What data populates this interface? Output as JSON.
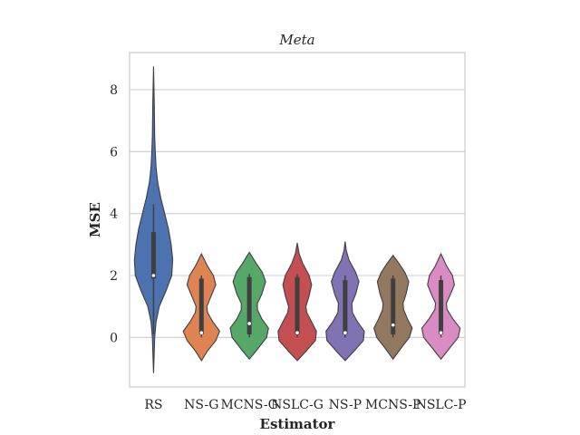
{
  "chart_data": {
    "type": "violin",
    "title": "Meta",
    "xlabel": "Estimator",
    "ylabel": "MSE",
    "categories": [
      "RS",
      "NS-G",
      "MCNS-G",
      "NSLC-G",
      "NS-P",
      "MCNS-P",
      "NSLC-P"
    ],
    "ylim": [
      -1.6,
      9.2
    ],
    "yticks": [
      0,
      2,
      4,
      6,
      8
    ],
    "grid": "horizontal",
    "series": [
      {
        "category": "RS",
        "color": "#4C72B0",
        "min": -1.15,
        "max": 8.75,
        "q1": 1.9,
        "median": 2.0,
        "q3": 3.4,
        "whisker_low": 0.1,
        "whisker_high": 4.3,
        "profile": [
          [
            -1.15,
            0.0
          ],
          [
            -0.6,
            0.03
          ],
          [
            0.0,
            0.06
          ],
          [
            0.5,
            0.13
          ],
          [
            1.0,
            0.3
          ],
          [
            1.5,
            0.65
          ],
          [
            2.0,
            0.95
          ],
          [
            2.5,
            1.0
          ],
          [
            3.0,
            0.92
          ],
          [
            3.5,
            0.78
          ],
          [
            4.0,
            0.58
          ],
          [
            4.5,
            0.38
          ],
          [
            5.0,
            0.22
          ],
          [
            5.5,
            0.13
          ],
          [
            6.0,
            0.09
          ],
          [
            6.5,
            0.06
          ],
          [
            7.5,
            0.04
          ],
          [
            8.75,
            0.0
          ]
        ]
      },
      {
        "category": "NS-G",
        "color": "#DD8452",
        "min": -0.75,
        "max": 2.7,
        "q1": 0.1,
        "median": 0.15,
        "q3": 1.9,
        "whisker_low": 0.0,
        "whisker_high": 2.0,
        "profile": [
          [
            -0.75,
            0.0
          ],
          [
            -0.45,
            0.3
          ],
          [
            -0.1,
            0.75
          ],
          [
            0.2,
            0.95
          ],
          [
            0.5,
            0.6
          ],
          [
            0.8,
            0.32
          ],
          [
            1.0,
            0.28
          ],
          [
            1.3,
            0.48
          ],
          [
            1.7,
            0.75
          ],
          [
            2.0,
            0.62
          ],
          [
            2.3,
            0.32
          ],
          [
            2.7,
            0.0
          ]
        ]
      },
      {
        "category": "MCNS-G",
        "color": "#55A868",
        "min": -0.7,
        "max": 2.75,
        "q1": 0.1,
        "median": 0.45,
        "q3": 1.95,
        "whisker_low": 0.0,
        "whisker_high": 2.05,
        "profile": [
          [
            -0.7,
            0.0
          ],
          [
            -0.4,
            0.4
          ],
          [
            0.0,
            0.9
          ],
          [
            0.3,
            1.0
          ],
          [
            0.6,
            0.65
          ],
          [
            0.9,
            0.42
          ],
          [
            1.1,
            0.42
          ],
          [
            1.4,
            0.65
          ],
          [
            1.8,
            0.85
          ],
          [
            2.1,
            0.68
          ],
          [
            2.4,
            0.35
          ],
          [
            2.75,
            0.0
          ]
        ]
      },
      {
        "category": "NSLC-G",
        "color": "#C44E52",
        "min": -0.75,
        "max": 3.05,
        "q1": 0.1,
        "median": 0.15,
        "q3": 1.95,
        "whisker_low": 0.0,
        "whisker_high": 2.05,
        "profile": [
          [
            -0.75,
            0.0
          ],
          [
            -0.45,
            0.45
          ],
          [
            -0.1,
            0.95
          ],
          [
            0.2,
            1.0
          ],
          [
            0.5,
            0.75
          ],
          [
            0.8,
            0.5
          ],
          [
            1.0,
            0.45
          ],
          [
            1.3,
            0.6
          ],
          [
            1.7,
            0.75
          ],
          [
            2.0,
            0.62
          ],
          [
            2.4,
            0.28
          ],
          [
            2.7,
            0.1
          ],
          [
            3.05,
            0.0
          ]
        ]
      },
      {
        "category": "NS-P",
        "color": "#8172B3",
        "min": -0.75,
        "max": 3.1,
        "q1": 0.1,
        "median": 0.15,
        "q3": 1.85,
        "whisker_low": 0.0,
        "whisker_high": 2.0,
        "profile": [
          [
            -0.75,
            0.0
          ],
          [
            -0.45,
            0.45
          ],
          [
            -0.1,
            0.95
          ],
          [
            0.2,
            1.0
          ],
          [
            0.5,
            0.65
          ],
          [
            0.8,
            0.38
          ],
          [
            1.1,
            0.35
          ],
          [
            1.4,
            0.55
          ],
          [
            1.8,
            0.72
          ],
          [
            2.1,
            0.55
          ],
          [
            2.5,
            0.2
          ],
          [
            2.8,
            0.06
          ],
          [
            3.1,
            0.0
          ]
        ]
      },
      {
        "category": "MCNS-P",
        "color": "#937860",
        "min": -0.7,
        "max": 2.65,
        "q1": 0.1,
        "median": 0.4,
        "q3": 1.9,
        "whisker_low": 0.0,
        "whisker_high": 2.0,
        "profile": [
          [
            -0.7,
            0.0
          ],
          [
            -0.4,
            0.35
          ],
          [
            0.0,
            0.85
          ],
          [
            0.3,
            1.0
          ],
          [
            0.6,
            0.75
          ],
          [
            0.9,
            0.55
          ],
          [
            1.1,
            0.52
          ],
          [
            1.4,
            0.68
          ],
          [
            1.8,
            0.82
          ],
          [
            2.1,
            0.62
          ],
          [
            2.4,
            0.3
          ],
          [
            2.65,
            0.0
          ]
        ]
      },
      {
        "category": "NSLC-P",
        "color": "#DA8BC3",
        "min": -0.7,
        "max": 2.7,
        "q1": 0.1,
        "median": 0.15,
        "q3": 1.85,
        "whisker_low": 0.0,
        "whisker_high": 2.0,
        "profile": [
          [
            -0.7,
            0.0
          ],
          [
            -0.4,
            0.38
          ],
          [
            0.0,
            0.9
          ],
          [
            0.3,
            1.0
          ],
          [
            0.6,
            0.62
          ],
          [
            0.9,
            0.32
          ],
          [
            1.1,
            0.28
          ],
          [
            1.4,
            0.5
          ],
          [
            1.7,
            0.7
          ],
          [
            2.0,
            0.6
          ],
          [
            2.3,
            0.3
          ],
          [
            2.7,
            0.0
          ]
        ]
      }
    ]
  }
}
